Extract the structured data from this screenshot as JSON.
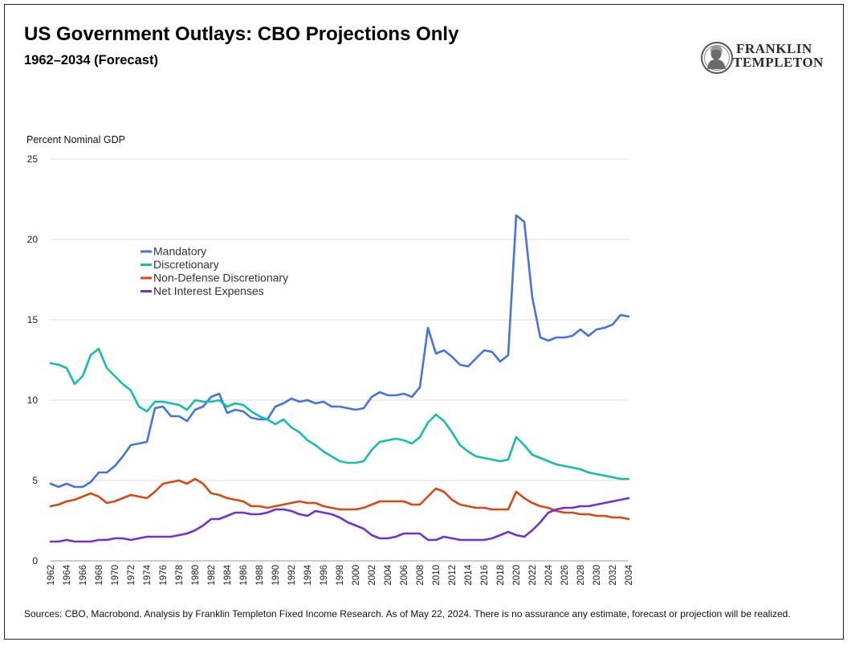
{
  "header": {
    "title": "US Government Outlays: CBO Projections Only",
    "subtitle": "1962–2034 (Forecast)"
  },
  "logo": {
    "line1": "FRANKLIN",
    "line2": "TEMPLETON",
    "icon": "franklin-portrait-icon"
  },
  "footer": {
    "source": "Sources: CBO, Macrobond. Analysis by Franklin Templeton Fixed Income Research. As of May 22, 2024. There is no assurance any estimate, forecast or projection will be realized."
  },
  "chart_data": {
    "type": "line",
    "title": "US Government Outlays: CBO Projections Only",
    "subtitle": "1962–2034 (Forecast)",
    "ylabel": "Percent Nominal GDP",
    "xlabel": "",
    "ylim": [
      0,
      25
    ],
    "yticks": [
      0,
      5,
      10,
      15,
      20,
      25
    ],
    "xlim": [
      1962,
      2034
    ],
    "xtick_step": 2,
    "grid": "horizontal",
    "legend_position": "upper-left-inside",
    "x_start": 1962,
    "series": [
      {
        "name": "Mandatory",
        "color": "#4472e8",
        "values": [
          4.8,
          4.6,
          4.8,
          4.6,
          4.6,
          4.9,
          5.5,
          5.5,
          5.9,
          6.5,
          7.2,
          7.3,
          7.4,
          9.5,
          9.6,
          9.0,
          9.0,
          8.7,
          9.4,
          9.6,
          10.2,
          10.4,
          9.2,
          9.4,
          9.3,
          8.9,
          8.8,
          8.8,
          9.6,
          9.8,
          10.1,
          9.9,
          10.0,
          9.8,
          9.9,
          9.6,
          9.6,
          9.5,
          9.4,
          9.5,
          10.2,
          10.5,
          10.3,
          10.3,
          10.4,
          10.2,
          10.8,
          14.5,
          12.9,
          13.1,
          12.7,
          12.2,
          12.1,
          12.6,
          13.1,
          13.0,
          12.4,
          12.8,
          21.5,
          21.1,
          16.4,
          13.9,
          13.7,
          13.9,
          13.9,
          14.0,
          14.4,
          14.0,
          14.4,
          14.5,
          14.7,
          15.3,
          15.2
        ]
      },
      {
        "name": "Discretionary",
        "color": "#12bfae",
        "values": [
          12.3,
          12.2,
          12.0,
          11.0,
          11.5,
          12.8,
          13.2,
          12.0,
          11.5,
          11.0,
          10.6,
          9.6,
          9.3,
          9.9,
          9.9,
          9.8,
          9.7,
          9.4,
          10.0,
          9.9,
          9.9,
          10.0,
          9.6,
          9.8,
          9.7,
          9.3,
          9.0,
          8.8,
          8.5,
          8.8,
          8.3,
          8.0,
          7.5,
          7.2,
          6.8,
          6.5,
          6.2,
          6.1,
          6.1,
          6.2,
          6.9,
          7.4,
          7.5,
          7.6,
          7.5,
          7.3,
          7.7,
          8.6,
          9.1,
          8.7,
          8.0,
          7.2,
          6.8,
          6.5,
          6.4,
          6.3,
          6.2,
          6.3,
          7.7,
          7.2,
          6.6,
          6.4,
          6.2,
          6.0,
          5.9,
          5.8,
          5.7,
          5.5,
          5.4,
          5.3,
          5.2,
          5.1,
          5.1
        ]
      },
      {
        "name": "Non-Defense Discretionary",
        "color": "#d9480f",
        "values": [
          3.4,
          3.5,
          3.7,
          3.8,
          4.0,
          4.2,
          4.0,
          3.6,
          3.7,
          3.9,
          4.1,
          4.0,
          3.9,
          4.3,
          4.8,
          4.9,
          5.0,
          4.8,
          5.1,
          4.8,
          4.2,
          4.1,
          3.9,
          3.8,
          3.7,
          3.4,
          3.4,
          3.3,
          3.4,
          3.5,
          3.6,
          3.7,
          3.6,
          3.6,
          3.4,
          3.3,
          3.2,
          3.2,
          3.2,
          3.3,
          3.5,
          3.7,
          3.7,
          3.7,
          3.7,
          3.5,
          3.5,
          4.0,
          4.5,
          4.3,
          3.8,
          3.5,
          3.4,
          3.3,
          3.3,
          3.2,
          3.2,
          3.2,
          4.3,
          3.9,
          3.6,
          3.4,
          3.3,
          3.1,
          3.0,
          3.0,
          2.9,
          2.9,
          2.8,
          2.8,
          2.7,
          2.7,
          2.6
        ]
      },
      {
        "name": "Net Interest Expenses",
        "color": "#7030e0",
        "values": [
          1.2,
          1.2,
          1.3,
          1.2,
          1.2,
          1.2,
          1.3,
          1.3,
          1.4,
          1.4,
          1.3,
          1.4,
          1.5,
          1.5,
          1.5,
          1.5,
          1.6,
          1.7,
          1.9,
          2.2,
          2.6,
          2.6,
          2.8,
          3.0,
          3.0,
          2.9,
          2.9,
          3.0,
          3.2,
          3.2,
          3.1,
          2.9,
          2.8,
          3.1,
          3.0,
          2.9,
          2.7,
          2.4,
          2.2,
          2.0,
          1.6,
          1.4,
          1.4,
          1.5,
          1.7,
          1.7,
          1.7,
          1.3,
          1.3,
          1.5,
          1.4,
          1.3,
          1.3,
          1.3,
          1.3,
          1.4,
          1.6,
          1.8,
          1.6,
          1.5,
          1.9,
          2.4,
          3.0,
          3.2,
          3.3,
          3.3,
          3.4,
          3.4,
          3.5,
          3.6,
          3.7,
          3.8,
          3.9
        ]
      }
    ]
  }
}
